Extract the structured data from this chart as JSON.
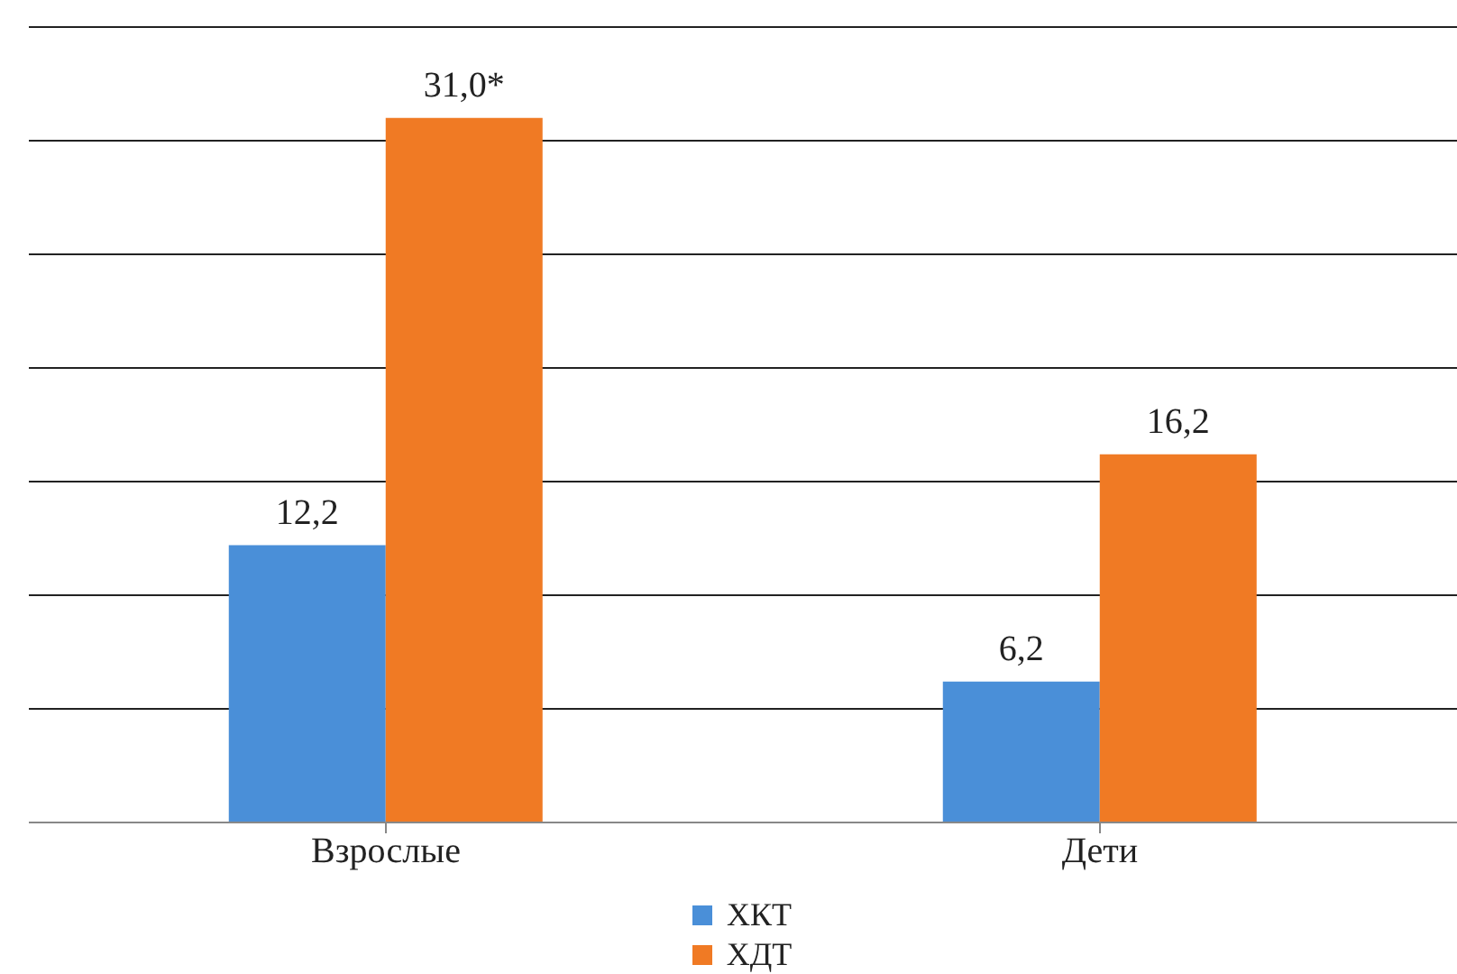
{
  "chart_data": {
    "type": "bar",
    "categories": [
      "Взрослые",
      "Дети"
    ],
    "series": [
      {
        "name": "ХКТ",
        "color": "#4a8fd8",
        "values": [
          12.2,
          6.2
        ],
        "value_labels": [
          "12,2",
          "6,2"
        ]
      },
      {
        "name": "ХДТ",
        "color": "#f07a24",
        "values": [
          31.0,
          16.2
        ],
        "value_labels": [
          "31,0*",
          "16,2"
        ]
      }
    ],
    "ylim": [
      0,
      35
    ],
    "yticks": [
      {
        "value": 0,
        "label": null
      },
      {
        "value": 5,
        "label": null
      },
      {
        "value": 10,
        "label": null
      },
      {
        "value": 15,
        "label": null
      },
      {
        "value": 20,
        "label": null
      },
      {
        "value": 25,
        "label": null
      },
      {
        "value": 30,
        "label": null
      },
      {
        "value": 35,
        "label": null
      }
    ],
    "tick_labels": "x",
    "grid": "y",
    "legend": "bottom"
  }
}
